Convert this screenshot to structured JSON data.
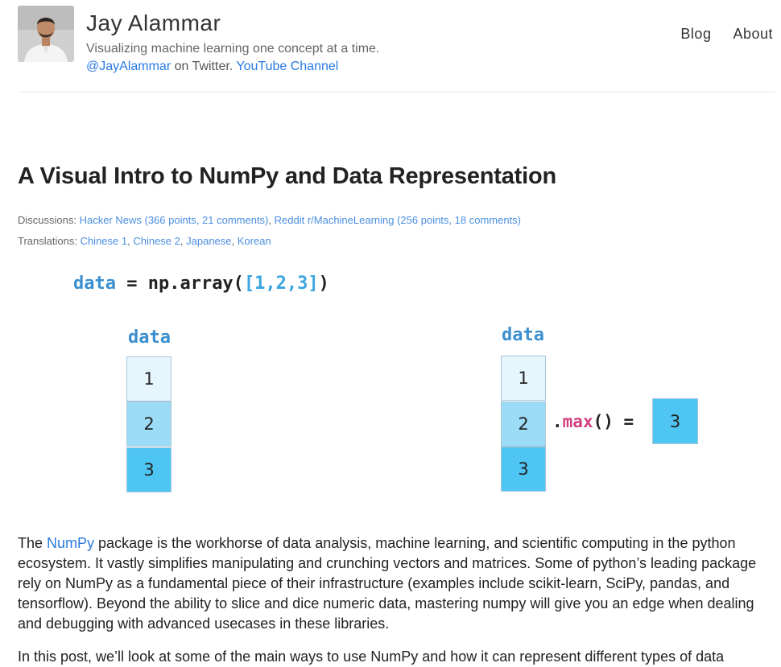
{
  "header": {
    "site_title": "Jay Alammar",
    "tagline": "Visualizing machine learning one concept at a time.",
    "twitter_link": "@JayAlammar",
    "twitter_suffix": " on Twitter. ",
    "youtube_link": "YouTube Channel",
    "nav": [
      "Blog",
      "About"
    ]
  },
  "post": {
    "title": "A Visual Intro to NumPy and Data Representation",
    "discussions_label": "Discussions: ",
    "discussions": [
      {
        "text": "Hacker News (366 points, 21 comments)",
        "sep": ", "
      },
      {
        "text": "Reddit r/MachineLearning (256 points, 18 comments)",
        "sep": ""
      }
    ],
    "translations_label": "Translations: ",
    "translations": [
      {
        "text": "Chinese 1",
        "sep": ", "
      },
      {
        "text": "Chinese 2",
        "sep": ", "
      },
      {
        "text": "Japanese",
        "sep": ", "
      },
      {
        "text": "Korean",
        "sep": ""
      }
    ]
  },
  "figure": {
    "code_var": "data",
    "code_eq": " = np.array(",
    "code_arg": "[1,2,3]",
    "code_close": ")",
    "array_label": "data",
    "values": [
      "1",
      "2",
      "3"
    ],
    "cell_colors": [
      "#e6f6fd",
      "#9ddcf7",
      "#4fc5f3"
    ],
    "op_dot": ".",
    "op_method": "max",
    "op_rest": "() =",
    "result": "3",
    "result_color": "#4fc5f3"
  },
  "body": {
    "p1_before": "The ",
    "p1_link": "NumPy",
    "p1_after": " package is the workhorse of data analysis, machine learning, and scientific computing in the python ecosystem. It vastly simplifies manipulating and crunching vectors and matrices. Some of python’s leading package rely on NumPy as a fundamental piece of their infrastructure (examples include scikit-learn, SciPy, pandas, and tensorflow). Beyond the ability to slice and dice numeric data, mastering numpy will give you an edge when dealing and debugging with advanced usecases in these libraries.",
    "p2": "In this post, we’ll look at some of the main ways to use NumPy and how it can represent different types of data"
  }
}
